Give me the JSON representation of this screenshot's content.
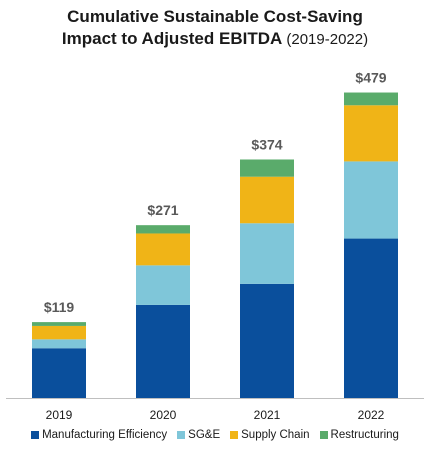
{
  "chart_data": {
    "type": "bar",
    "stacked": true,
    "title": "Cumulative Sustainable Cost-Saving",
    "title_line2": "Impact to Adjusted EBITDA",
    "subtitle": "(2019-2022)",
    "categories": [
      "2019",
      "2020",
      "2021",
      "2022"
    ],
    "totals": [
      119,
      271,
      374,
      479
    ],
    "total_labels": [
      "$119",
      "$271",
      "$374",
      "$479"
    ],
    "series": [
      {
        "name": "Manufacturing Efficiency",
        "color": "#0a4f9c",
        "values": [
          78,
          146,
          179,
          250
        ]
      },
      {
        "name": "SG&E",
        "color": "#7fc6d9",
        "values": [
          14,
          62,
          95,
          121
        ]
      },
      {
        "name": "Supply Chain",
        "color": "#f0b417",
        "values": [
          21,
          50,
          73,
          88
        ]
      },
      {
        "name": "Restructuring",
        "color": "#5aab6b",
        "values": [
          6,
          13,
          27,
          20
        ]
      }
    ],
    "ylim": [
      0,
      530
    ],
    "legend_position": "bottom",
    "grid": false
  }
}
